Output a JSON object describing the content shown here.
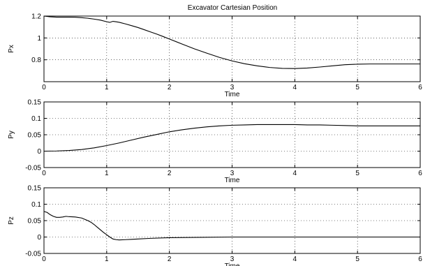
{
  "chart_data": [
    {
      "type": "line",
      "title": "Excavator Cartesian Position",
      "xlabel": "Time",
      "ylabel": "Px",
      "xlim": [
        0,
        6
      ],
      "ylim": [
        0.6,
        1.2
      ],
      "xticks": [
        0,
        1,
        2,
        3,
        4,
        5,
        6
      ],
      "yticks": [
        0.8,
        1,
        1.2
      ],
      "ytick_labels": [
        "0.8",
        "1",
        "1.2"
      ],
      "xtick_labels": [
        "0",
        "1",
        "2",
        "3",
        "4",
        "5",
        "6"
      ],
      "grid": true,
      "series": [
        {
          "x": [
            0,
            0.1,
            0.2,
            0.3,
            0.4,
            0.5,
            0.6,
            0.7,
            0.8,
            0.9,
            1.0,
            1.05,
            1.1,
            1.15,
            1.2,
            1.3,
            1.4,
            1.5,
            1.6,
            1.7,
            1.8,
            1.9,
            2.0,
            2.2,
            2.4,
            2.6,
            2.8,
            3.0,
            3.2,
            3.4,
            3.6,
            3.8,
            4.0,
            4.2,
            4.4,
            4.6,
            4.8,
            5.0,
            5.2,
            5.4,
            5.6,
            5.8,
            6.0
          ],
          "values": [
            1.2,
            1.193,
            1.19,
            1.19,
            1.19,
            1.189,
            1.185,
            1.18,
            1.172,
            1.163,
            1.148,
            1.142,
            1.152,
            1.148,
            1.143,
            1.128,
            1.112,
            1.095,
            1.075,
            1.055,
            1.035,
            1.013,
            0.99,
            0.945,
            0.9,
            0.86,
            0.822,
            0.79,
            0.764,
            0.745,
            0.73,
            0.722,
            0.72,
            0.725,
            0.734,
            0.745,
            0.755,
            0.76,
            0.762,
            0.762,
            0.762,
            0.762,
            0.762
          ]
        }
      ]
    },
    {
      "type": "line",
      "xlabel": "Time",
      "ylabel": "Py",
      "xlim": [
        0,
        6
      ],
      "ylim": [
        -0.05,
        0.15
      ],
      "xticks": [
        0,
        1,
        2,
        3,
        4,
        5,
        6
      ],
      "yticks": [
        -0.05,
        0,
        0.05,
        0.1,
        0.15
      ],
      "ytick_labels": [
        "-0.05",
        "0",
        "0.05",
        "0.1",
        "0.15"
      ],
      "xtick_labels": [
        "0",
        "1",
        "2",
        "3",
        "4",
        "5",
        "6"
      ],
      "grid": true,
      "series": [
        {
          "x": [
            0,
            0.2,
            0.4,
            0.6,
            0.8,
            1.0,
            1.2,
            1.4,
            1.6,
            1.8,
            2.0,
            2.2,
            2.4,
            2.6,
            2.8,
            3.0,
            3.2,
            3.4,
            3.6,
            3.8,
            4.0,
            4.2,
            4.4,
            4.6,
            4.8,
            5.0,
            5.2,
            5.4,
            5.6,
            5.8,
            6.0
          ],
          "values": [
            0,
            0.0005,
            0.002,
            0.005,
            0.01,
            0.017,
            0.025,
            0.034,
            0.043,
            0.051,
            0.059,
            0.065,
            0.07,
            0.074,
            0.077,
            0.079,
            0.08,
            0.081,
            0.081,
            0.081,
            0.081,
            0.08,
            0.08,
            0.079,
            0.078,
            0.077,
            0.077,
            0.077,
            0.077,
            0.077,
            0.077
          ]
        }
      ]
    },
    {
      "type": "line",
      "xlabel": "Time",
      "ylabel": "Pz",
      "xlim": [
        0,
        6
      ],
      "ylim": [
        -0.05,
        0.15
      ],
      "xticks": [
        0,
        1,
        2,
        3,
        4,
        5,
        6
      ],
      "yticks": [
        -0.05,
        0,
        0.05,
        0.1,
        0.15
      ],
      "ytick_labels": [
        "-0.05",
        "0",
        "0.05",
        "0.1",
        "0.15"
      ],
      "xtick_labels": [
        "0",
        "1",
        "2",
        "3",
        "4",
        "5",
        "6"
      ],
      "grid": true,
      "series": [
        {
          "x": [
            0,
            0.05,
            0.1,
            0.15,
            0.2,
            0.25,
            0.3,
            0.35,
            0.4,
            0.5,
            0.6,
            0.7,
            0.75,
            0.8,
            0.85,
            0.9,
            0.95,
            1.0,
            1.05,
            1.1,
            1.15,
            1.2,
            1.3,
            1.4,
            1.5,
            1.7,
            2.0,
            2.5,
            3.0,
            4.0,
            5.0,
            6.0
          ],
          "values": [
            0.078,
            0.075,
            0.068,
            0.063,
            0.06,
            0.06,
            0.061,
            0.063,
            0.062,
            0.061,
            0.058,
            0.05,
            0.045,
            0.038,
            0.03,
            0.022,
            0.014,
            0.007,
            0.0,
            -0.006,
            -0.008,
            -0.009,
            -0.008,
            -0.007,
            -0.006,
            -0.004,
            -0.002,
            -0.001,
            0.0,
            0.0,
            0.0,
            0.0
          ]
        }
      ]
    }
  ]
}
